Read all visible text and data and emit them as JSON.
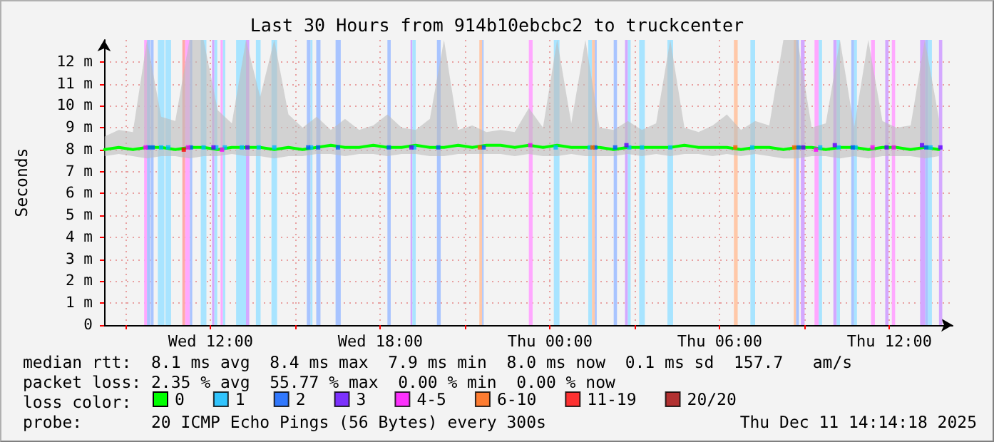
{
  "chart_data": {
    "type": "line",
    "title": "Last 30 Hours from 914b10ebcbc2 to truckcenter",
    "ylabel": "Seconds",
    "legend_title": "loss color:",
    "annotations": [
      "median rtt:  8.1 ms avg  8.4 ms max  7.9 ms min  8.0 ms now  0.1 ms sd  157.7   am/s",
      "packet loss: 2.35 % avg  55.77 % max  0.00 % min  0.00 % now",
      "probe:       20 ICMP Echo Pings (56 Bytes) every 300s",
      "Thu Dec 11 14:14:18 2025"
    ],
    "xlim": [
      "2025-12-10T08:14",
      "2025-12-11T14:14"
    ],
    "xticks": [
      {
        "value": "2025-12-10T09:00",
        "label": null
      },
      {
        "value": "2025-12-10T12:00",
        "label": "Wed 12:00"
      },
      {
        "value": "2025-12-10T15:00",
        "label": null
      },
      {
        "value": "2025-12-10T18:00",
        "label": "Wed 18:00"
      },
      {
        "value": "2025-12-10T21:00",
        "label": null
      },
      {
        "value": "2025-12-11T00:00",
        "label": "Thu 00:00"
      },
      {
        "value": "2025-12-11T03:00",
        "label": null
      },
      {
        "value": "2025-12-11T06:00",
        "label": "Thu 06:00"
      },
      {
        "value": "2025-12-11T09:00",
        "label": null
      },
      {
        "value": "2025-12-11T12:00",
        "label": "Thu 12:00"
      }
    ],
    "ylim": [
      0,
      13
    ],
    "yticks": [
      0,
      {
        "value": 1,
        "label": "1 m"
      },
      {
        "value": 2,
        "label": "2 m"
      },
      {
        "value": 3,
        "label": "3 m"
      },
      {
        "value": 4,
        "label": "4 m"
      },
      {
        "value": 5,
        "label": "5 m"
      },
      {
        "value": 6,
        "label": "6 m"
      },
      {
        "value": 7,
        "label": "7 m"
      },
      {
        "value": 8,
        "label": "8 m"
      },
      {
        "value": 9,
        "label": "9 m"
      },
      {
        "value": 10,
        "label": "10 m"
      },
      {
        "value": 11,
        "label": "11 m"
      },
      {
        "value": 12,
        "label": "12 m"
      }
    ],
    "grid": true,
    "legend": "bottom left",
    "series": [
      {
        "name": "0",
        "color": "#00ff00",
        "marker": "none",
        "line_style": "solid",
        "x": [
          "2025-12-10T08:15",
          "2025-12-10T08:45",
          "2025-12-10T09:15",
          "2025-12-10T09:45",
          "2025-12-10T10:15",
          "2025-12-10T10:45",
          "2025-12-10T11:15",
          "2025-12-10T11:45",
          "2025-12-10T12:15",
          "2025-12-10T12:45",
          "2025-12-10T13:15",
          "2025-12-10T13:45",
          "2025-12-10T14:15",
          "2025-12-10T14:45",
          "2025-12-10T15:15",
          "2025-12-10T15:45",
          "2025-12-10T16:15",
          "2025-12-10T16:45",
          "2025-12-10T17:15",
          "2025-12-10T17:45",
          "2025-12-10T18:15",
          "2025-12-10T18:45",
          "2025-12-10T19:15",
          "2025-12-10T19:45",
          "2025-12-10T20:15",
          "2025-12-10T20:45",
          "2025-12-10T21:15",
          "2025-12-10T21:45",
          "2025-12-10T22:15",
          "2025-12-10T22:45",
          "2025-12-10T23:15",
          "2025-12-10T23:45",
          "2025-12-11T00:15",
          "2025-12-11T00:45",
          "2025-12-11T01:15",
          "2025-12-11T01:45",
          "2025-12-11T02:15",
          "2025-12-11T02:45",
          "2025-12-11T03:15",
          "2025-12-11T03:45",
          "2025-12-11T04:15",
          "2025-12-11T04:45",
          "2025-12-11T05:15",
          "2025-12-11T05:45",
          "2025-12-11T06:15",
          "2025-12-11T06:45",
          "2025-12-11T07:15",
          "2025-12-11T07:45",
          "2025-12-11T08:15",
          "2025-12-11T08:45",
          "2025-12-11T09:15",
          "2025-12-11T09:45",
          "2025-12-11T10:15",
          "2025-12-11T10:45",
          "2025-12-11T11:15",
          "2025-12-11T11:45",
          "2025-12-11T12:15",
          "2025-12-11T12:45",
          "2025-12-11T13:15",
          "2025-12-11T13:45"
        ],
        "values": [
          8.0,
          8.1,
          8.0,
          8.1,
          8.1,
          8.0,
          8.1,
          8.1,
          8.0,
          8.1,
          8.1,
          8.1,
          8.0,
          8.1,
          8.0,
          8.1,
          8.2,
          8.1,
          8.1,
          8.2,
          8.1,
          8.1,
          8.2,
          8.1,
          8.1,
          8.2,
          8.1,
          8.2,
          8.2,
          8.1,
          8.2,
          8.1,
          8.2,
          8.1,
          8.1,
          8.1,
          8.0,
          8.1,
          8.1,
          8.1,
          8.1,
          8.2,
          8.1,
          8.1,
          8.1,
          8.0,
          8.1,
          8.1,
          8.0,
          8.1,
          8.1,
          8.0,
          8.1,
          8.1,
          8.0,
          8.1,
          8.1,
          8.0,
          8.1,
          8.0
        ],
        "upper": [
          8.6,
          8.9,
          8.8,
          13,
          9.5,
          9.3,
          13,
          13,
          9.8,
          9.2,
          13,
          10.4,
          13,
          9.6,
          9.0,
          9.5,
          8.9,
          9.4,
          8.9,
          9.1,
          9.6,
          9.0,
          8.9,
          9.4,
          13,
          8.9,
          9.1,
          8.8,
          8.9,
          8.8,
          9.9,
          9.0,
          13,
          9.2,
          13,
          9.0,
          8.9,
          9.3,
          8.9,
          9.2,
          13,
          9.0,
          8.8,
          9.1,
          9.6,
          8.9,
          9.3,
          9.1,
          13,
          13,
          9.0,
          9.2,
          13,
          9.0,
          13,
          9.3,
          9.0,
          9.1,
          13,
          9.4
        ],
        "lower": [
          7.7,
          7.8,
          7.7,
          7.6,
          7.7,
          7.7,
          7.6,
          7.7,
          7.7,
          7.8,
          7.7,
          7.7,
          7.6,
          7.7,
          7.7,
          7.8,
          7.8,
          7.7,
          7.8,
          7.8,
          7.7,
          7.8,
          7.8,
          7.7,
          7.7,
          7.8,
          7.8,
          7.8,
          7.8,
          7.7,
          7.8,
          7.7,
          7.7,
          7.8,
          7.7,
          7.7,
          7.7,
          7.8,
          7.7,
          7.8,
          7.7,
          7.8,
          7.8,
          7.7,
          7.8,
          7.7,
          7.8,
          7.7,
          7.6,
          7.6,
          7.7,
          7.7,
          7.6,
          7.7,
          7.6,
          7.7,
          7.7,
          7.7,
          7.6,
          7.7
        ]
      },
      {
        "name": "1",
        "type": "scatter",
        "color": "#00b8ff",
        "marker": "square",
        "x": [
          "2025-12-10T10:15",
          "2025-12-10T10:30",
          "2025-12-10T11:45",
          "2025-12-10T12:12",
          "2025-12-10T12:30",
          "2025-12-10T13:06",
          "2025-12-10T13:42",
          "2025-12-10T14:15",
          "2025-12-10T15:33",
          "2025-12-10T19:12",
          "2025-12-11T00:12",
          "2025-12-11T01:24",
          "2025-12-11T02:48",
          "2025-12-11T03:15",
          "2025-12-11T04:15",
          "2025-12-11T07:09",
          "2025-12-11T09:33",
          "2025-12-11T10:12",
          "2025-12-11T10:48",
          "2025-12-11T13:27"
        ],
        "values": [
          8.1,
          8.1,
          8.1,
          8.1,
          8.1,
          8.1,
          8.1,
          8.1,
          8.1,
          8.1,
          8.1,
          8.1,
          8.1,
          8.1,
          8.1,
          8.1,
          8.1,
          8.1,
          8.1,
          8.1
        ]
      },
      {
        "name": "2",
        "type": "scatter",
        "color": "#0059ff",
        "marker": "square",
        "x": [
          "2025-12-10T09:48",
          "2025-12-10T09:57",
          "2025-12-10T11:18",
          "2025-12-10T15:27",
          "2025-12-10T15:48",
          "2025-12-10T16:30",
          "2025-12-10T18:18",
          "2025-12-10T20:03",
          "2025-12-10T21:39",
          "2025-12-11T01:36",
          "2025-12-11T02:18",
          "2025-12-11T08:47",
          "2025-12-11T10:42",
          "2025-12-11T13:18"
        ],
        "values": [
          8.1,
          8.1,
          8.1,
          8.1,
          8.1,
          8.1,
          8.1,
          8.1,
          8.1,
          8.1,
          8.1,
          8.1,
          8.1,
          8.1
        ]
      },
      {
        "name": "3",
        "type": "scatter",
        "color": "#5e00ff",
        "marker": "square",
        "x": [
          "2025-12-10T12:06",
          "2025-12-10T13:18",
          "2025-12-10T19:06",
          "2025-12-11T02:42",
          "2025-12-11T08:57",
          "2025-12-11T10:04",
          "2025-12-11T11:54",
          "2025-12-11T13:09",
          "2025-12-11T13:48"
        ],
        "values": [
          8.1,
          8.1,
          8.1,
          8.2,
          8.1,
          8.2,
          8.1,
          8.2,
          8.1
        ]
      },
      {
        "name": "4-5",
        "type": "scatter",
        "color": "#ff00ff",
        "marker": "square",
        "x": [
          "2025-12-10T09:42",
          "2025-12-10T11:12",
          "2025-12-10T12:24",
          "2025-12-10T23:18",
          "2025-12-11T09:24",
          "2025-12-11T11:24",
          "2025-12-11T12:09"
        ],
        "values": [
          8.1,
          8.1,
          8.0,
          8.2,
          8.0,
          8.1,
          8.1
        ]
      },
      {
        "name": "6-10",
        "type": "scatter",
        "color": "#ff5e00",
        "marker": "square",
        "x": [
          "2025-12-10T21:31",
          "2025-12-11T01:30",
          "2025-12-11T06:33",
          "2025-12-11T08:38"
        ],
        "values": [
          8.1,
          8.1,
          8.1,
          8.1
        ]
      },
      {
        "name": "11-19",
        "type": "scatter",
        "color": "#ff0000",
        "marker": "square",
        "x": [
          "2025-12-10T11:03"
        ],
        "values": [
          8.0
        ]
      },
      {
        "name": "20/20",
        "type": "scatter",
        "color": "#a10000",
        "marker": "square"
      }
    ],
    "bands": [
      {
        "axis": "x",
        "from": "2025-12-10T09:39",
        "to": "2025-12-10T09:45",
        "color": "#ffa8ff"
      },
      {
        "axis": "x",
        "from": "2025-12-10T09:45",
        "to": "2025-12-10T09:52",
        "color": "#a8c4ff"
      },
      {
        "axis": "x",
        "from": "2025-12-10T09:53",
        "to": "2025-12-10T09:59",
        "color": "#a8c4ff"
      },
      {
        "axis": "x",
        "from": "2025-12-10T10:08",
        "to": "2025-12-10T10:22",
        "color": "#a8e4ff"
      },
      {
        "axis": "x",
        "from": "2025-12-10T10:24",
        "to": "2025-12-10T10:36",
        "color": "#a8e4ff"
      },
      {
        "axis": "x",
        "from": "2025-12-10T11:00",
        "to": "2025-12-10T11:06",
        "color": "#ffa8a8"
      },
      {
        "axis": "x",
        "from": "2025-12-10T11:06",
        "to": "2025-12-10T11:16",
        "color": "#ffa8ff"
      },
      {
        "axis": "x",
        "from": "2025-12-10T11:16",
        "to": "2025-12-10T11:21",
        "color": "#a8c4ff"
      },
      {
        "axis": "x",
        "from": "2025-12-10T11:39",
        "to": "2025-12-10T11:51",
        "color": "#a8e4ff"
      },
      {
        "axis": "x",
        "from": "2025-12-10T12:03",
        "to": "2025-12-10T12:08",
        "color": "#d4a8ff"
      },
      {
        "axis": "x",
        "from": "2025-12-10T12:08",
        "to": "2025-12-10T12:14",
        "color": "#a8e4ff"
      },
      {
        "axis": "x",
        "from": "2025-12-10T12:21",
        "to": "2025-12-10T12:26",
        "color": "#ffa8ff"
      },
      {
        "axis": "x",
        "from": "2025-12-10T12:26",
        "to": "2025-12-10T12:31",
        "color": "#a8e4ff"
      },
      {
        "axis": "x",
        "from": "2025-12-10T12:54",
        "to": "2025-12-10T13:15",
        "color": "#a8e4ff"
      },
      {
        "axis": "x",
        "from": "2025-12-10T13:15",
        "to": "2025-12-10T13:22",
        "color": "#d4a8ff"
      },
      {
        "axis": "x",
        "from": "2025-12-10T13:36",
        "to": "2025-12-10T13:46",
        "color": "#a8e4ff"
      },
      {
        "axis": "x",
        "from": "2025-12-10T14:09",
        "to": "2025-12-10T14:21",
        "color": "#a8e4ff"
      },
      {
        "axis": "x",
        "from": "2025-12-10T15:24",
        "to": "2025-12-10T15:32",
        "color": "#a8c4ff"
      },
      {
        "axis": "x",
        "from": "2025-12-10T15:32",
        "to": "2025-12-10T15:36",
        "color": "#a8e4ff"
      },
      {
        "axis": "x",
        "from": "2025-12-10T15:44",
        "to": "2025-12-10T15:53",
        "color": "#a8c4ff"
      },
      {
        "axis": "x",
        "from": "2025-12-10T16:25",
        "to": "2025-12-10T16:36",
        "color": "#a8c4ff"
      },
      {
        "axis": "x",
        "from": "2025-12-10T18:15",
        "to": "2025-12-10T18:22",
        "color": "#a8c4ff"
      },
      {
        "axis": "x",
        "from": "2025-12-10T19:04",
        "to": "2025-12-10T19:08",
        "color": "#d4a8ff"
      },
      {
        "axis": "x",
        "from": "2025-12-10T19:08",
        "to": "2025-12-10T19:15",
        "color": "#a8e4ff"
      },
      {
        "axis": "x",
        "from": "2025-12-10T20:00",
        "to": "2025-12-10T20:08",
        "color": "#a8c4ff"
      },
      {
        "axis": "x",
        "from": "2025-12-10T21:30",
        "to": "2025-12-10T21:36",
        "color": "#ffc8a8"
      },
      {
        "axis": "x",
        "from": "2025-12-10T21:36",
        "to": "2025-12-10T21:39",
        "color": "#a8c4ff"
      },
      {
        "axis": "x",
        "from": "2025-12-10T23:15",
        "to": "2025-12-10T23:23",
        "color": "#ffa8ff"
      },
      {
        "axis": "x",
        "from": "2025-12-11T00:08",
        "to": "2025-12-11T00:20",
        "color": "#a8e4ff"
      },
      {
        "axis": "x",
        "from": "2025-12-11T01:21",
        "to": "2025-12-11T01:29",
        "color": "#a8e4ff"
      },
      {
        "axis": "x",
        "from": "2025-12-11T01:29",
        "to": "2025-12-11T01:35",
        "color": "#ffc8a8"
      },
      {
        "axis": "x",
        "from": "2025-12-11T01:35",
        "to": "2025-12-11T01:39",
        "color": "#a8c4ff"
      },
      {
        "axis": "x",
        "from": "2025-12-11T02:15",
        "to": "2025-12-11T02:22",
        "color": "#a8c4ff"
      },
      {
        "axis": "x",
        "from": "2025-12-11T02:39",
        "to": "2025-12-11T02:45",
        "color": "#d4a8ff"
      },
      {
        "axis": "x",
        "from": "2025-12-11T02:45",
        "to": "2025-12-11T02:51",
        "color": "#a8e4ff"
      },
      {
        "axis": "x",
        "from": "2025-12-11T03:09",
        "to": "2025-12-11T03:21",
        "color": "#a8e4ff"
      },
      {
        "axis": "x",
        "from": "2025-12-11T04:09",
        "to": "2025-12-11T04:21",
        "color": "#a8e4ff"
      },
      {
        "axis": "x",
        "from": "2025-12-11T06:30",
        "to": "2025-12-11T06:38",
        "color": "#ffc8a8"
      },
      {
        "axis": "x",
        "from": "2025-12-11T07:05",
        "to": "2025-12-11T07:15",
        "color": "#a8e4ff"
      },
      {
        "axis": "x",
        "from": "2025-12-11T08:37",
        "to": "2025-12-11T08:42",
        "color": "#ffc8a8"
      },
      {
        "axis": "x",
        "from": "2025-12-11T08:42",
        "to": "2025-12-11T08:48",
        "color": "#a8c4ff"
      },
      {
        "axis": "x",
        "from": "2025-12-11T08:52",
        "to": "2025-12-11T09:00",
        "color": "#d4a8ff"
      },
      {
        "axis": "x",
        "from": "2025-12-11T09:21",
        "to": "2025-12-11T09:30",
        "color": "#ffa8ff"
      },
      {
        "axis": "x",
        "from": "2025-12-11T09:30",
        "to": "2025-12-11T09:37",
        "color": "#a8e4ff"
      },
      {
        "axis": "x",
        "from": "2025-12-11T10:01",
        "to": "2025-12-11T10:08",
        "color": "#d4a8ff"
      },
      {
        "axis": "x",
        "from": "2025-12-11T10:08",
        "to": "2025-12-11T10:15",
        "color": "#a8e4ff"
      },
      {
        "axis": "x",
        "from": "2025-12-11T10:39",
        "to": "2025-12-11T10:45",
        "color": "#a8c4ff"
      },
      {
        "axis": "x",
        "from": "2025-12-11T10:45",
        "to": "2025-12-11T10:51",
        "color": "#a8e4ff"
      },
      {
        "axis": "x",
        "from": "2025-12-11T11:21",
        "to": "2025-12-11T11:29",
        "color": "#ffa8ff"
      },
      {
        "axis": "x",
        "from": "2025-12-11T11:51",
        "to": "2025-12-11T11:58",
        "color": "#d4a8ff"
      },
      {
        "axis": "x",
        "from": "2025-12-11T12:05",
        "to": "2025-12-11T12:12",
        "color": "#ffa8ff"
      },
      {
        "axis": "x",
        "from": "2025-12-11T13:05",
        "to": "2025-12-11T13:16",
        "color": "#d4a8ff"
      },
      {
        "axis": "x",
        "from": "2025-12-11T13:16",
        "to": "2025-12-11T13:22",
        "color": "#a8c4ff"
      },
      {
        "axis": "x",
        "from": "2025-12-11T13:22",
        "to": "2025-12-11T13:30",
        "color": "#a8e4ff"
      },
      {
        "axis": "x",
        "from": "2025-12-11T13:45",
        "to": "2025-12-11T13:52",
        "color": "#d4a8ff"
      }
    ]
  }
}
